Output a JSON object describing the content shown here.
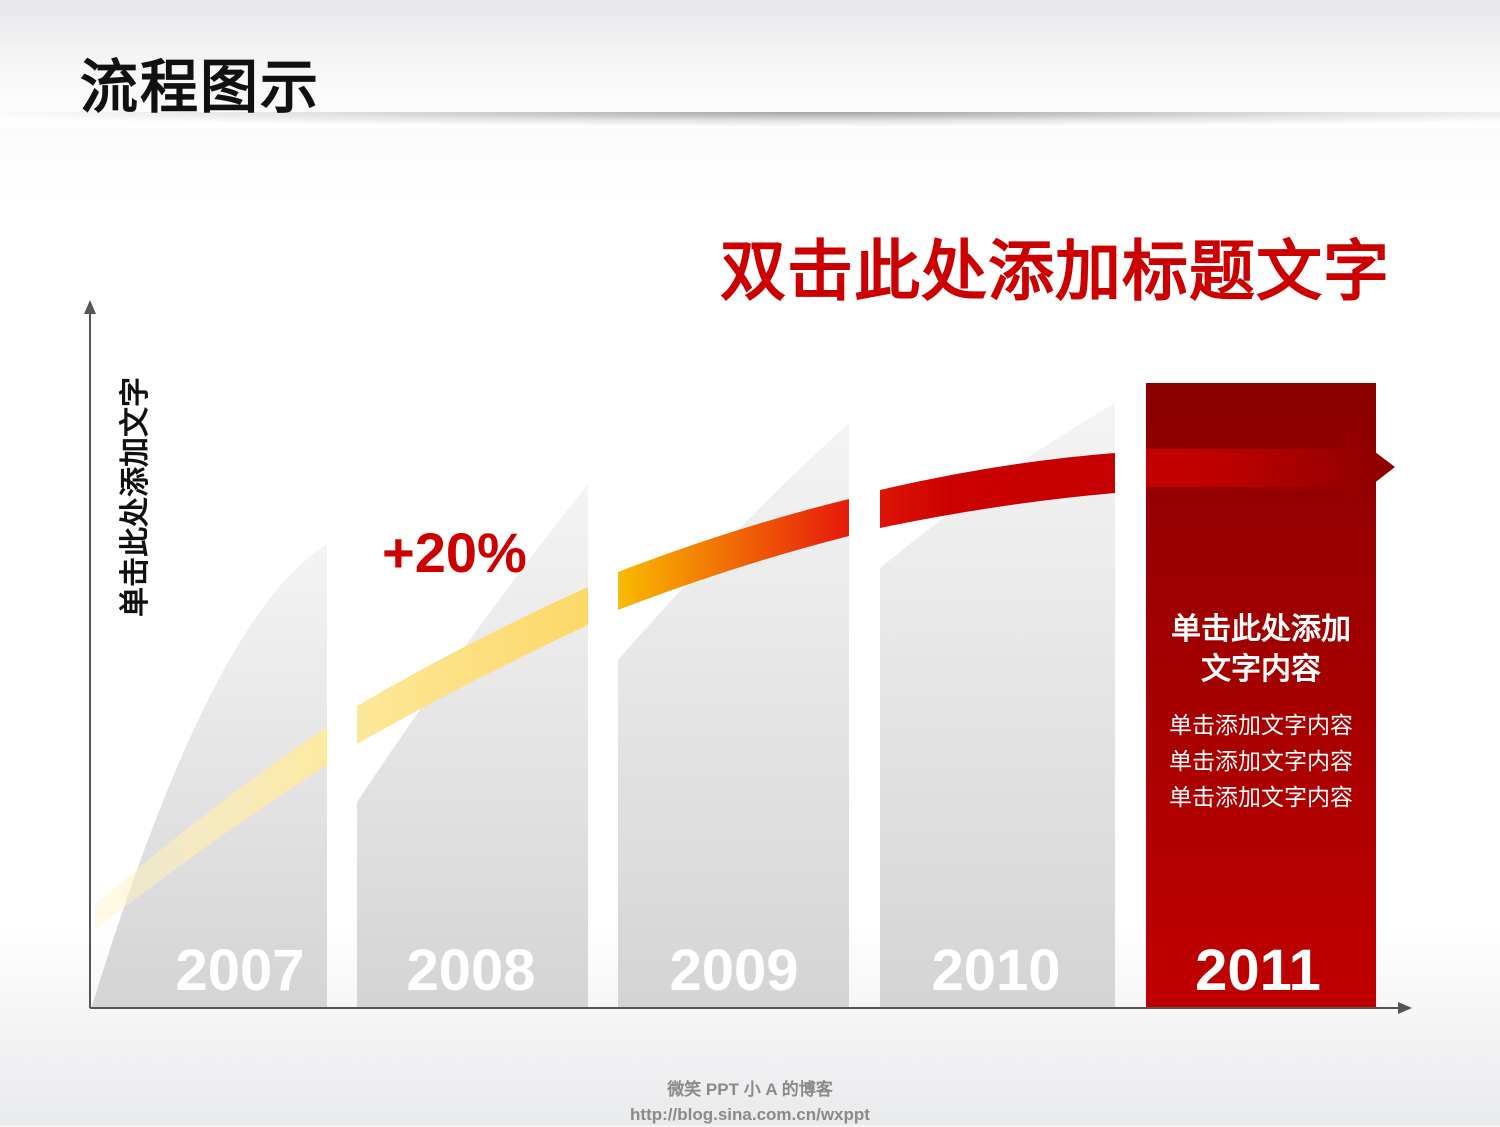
{
  "page": {
    "title": "流程图示"
  },
  "chart_data": {
    "type": "bar",
    "title": "双击此处添加标题文字",
    "ylabel": "单击此处添加文字",
    "xlabel": "",
    "categories": [
      "2007",
      "2008",
      "2009",
      "2010",
      "2011"
    ],
    "series": [
      {
        "values": [
          46,
          52,
          58,
          60,
          62
        ]
      }
    ],
    "ylim": [
      0,
      100
    ],
    "highlight_category": "2011",
    "annotation": {
      "text": "+20%",
      "near": "2008"
    },
    "grid": false,
    "colors": {
      "bar": "#d4d4d4",
      "highlight_bar": "#c00000",
      "arrow_start": "#fff3c4",
      "arrow_mid": "#f8b500",
      "arrow_end": "#8b0000",
      "accent": "#cc0000"
    }
  },
  "highlight_box": {
    "heading_line1": "单击此处添加",
    "heading_line2": "文字内容",
    "lines": [
      "单击添加文字内容",
      "单击添加文字内容",
      "单击添加文字内容"
    ]
  },
  "footer": {
    "line1": "微笑 PPT    小 A 的博客",
    "line2": "http://blog.sina.com.cn/wxppt"
  }
}
